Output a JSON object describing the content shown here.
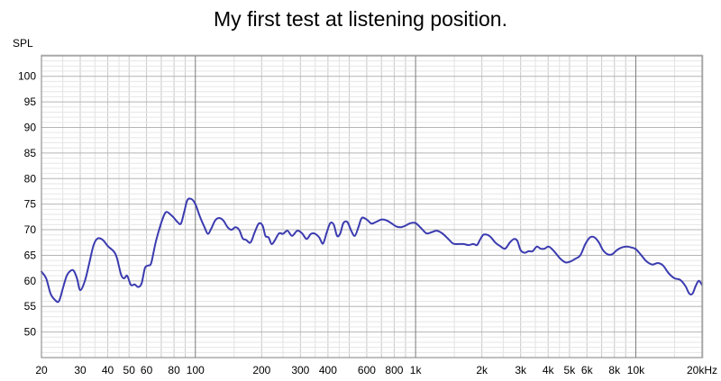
{
  "chart_data": {
    "type": "line",
    "title": "My first test at listening position.",
    "ylabel": "SPL",
    "xlabel": "",
    "x_scale": "log",
    "xlim": [
      20,
      20000
    ],
    "ylim": [
      45,
      104
    ],
    "grid": true,
    "y_ticks": [
      50,
      55,
      60,
      65,
      70,
      75,
      80,
      85,
      90,
      95,
      100
    ],
    "x_ticks": [
      {
        "value": 20,
        "label": "20"
      },
      {
        "value": 30,
        "label": "30"
      },
      {
        "value": 40,
        "label": "40"
      },
      {
        "value": 50,
        "label": "50"
      },
      {
        "value": 60,
        "label": "60"
      },
      {
        "value": 80,
        "label": "80"
      },
      {
        "value": 100,
        "label": "100"
      },
      {
        "value": 200,
        "label": "200"
      },
      {
        "value": 300,
        "label": "300"
      },
      {
        "value": 400,
        "label": "400"
      },
      {
        "value": 600,
        "label": "600"
      },
      {
        "value": 800,
        "label": "800"
      },
      {
        "value": 1000,
        "label": "1k"
      },
      {
        "value": 2000,
        "label": "2k"
      },
      {
        "value": 3000,
        "label": "3k"
      },
      {
        "value": 4000,
        "label": "4k"
      },
      {
        "value": 5000,
        "label": "5k"
      },
      {
        "value": 6000,
        "label": "6k"
      },
      {
        "value": 8000,
        "label": "8k"
      },
      {
        "value": 10000,
        "label": "10k"
      },
      {
        "value": 20000,
        "label": "20kHz"
      }
    ],
    "series": [
      {
        "color": "#3b3bb0",
        "points": [
          [
            20,
            61.8
          ],
          [
            21,
            60.5
          ],
          [
            22,
            57.5
          ],
          [
            23,
            56.3
          ],
          [
            24,
            56.0
          ],
          [
            25,
            58.5
          ],
          [
            26,
            60.9
          ],
          [
            27,
            61.9
          ],
          [
            28,
            62.0
          ],
          [
            29,
            60.5
          ],
          [
            30,
            58.2
          ],
          [
            31.5,
            60.0
          ],
          [
            33,
            63.5
          ],
          [
            34.5,
            67.0
          ],
          [
            36,
            68.3
          ],
          [
            38,
            68.0
          ],
          [
            40,
            66.8
          ],
          [
            42.5,
            65.8
          ],
          [
            44,
            64.5
          ],
          [
            46,
            61.2
          ],
          [
            47.5,
            60.5
          ],
          [
            49,
            61.0
          ],
          [
            51,
            59.2
          ],
          [
            53,
            59.3
          ],
          [
            55,
            58.8
          ],
          [
            57,
            59.5
          ],
          [
            59,
            62.5
          ],
          [
            61,
            63.0
          ],
          [
            63,
            63.5
          ],
          [
            66,
            67.5
          ],
          [
            69,
            70.5
          ],
          [
            72,
            72.8
          ],
          [
            74,
            73.5
          ],
          [
            77,
            73.0
          ],
          [
            80,
            72.3
          ],
          [
            83,
            71.5
          ],
          [
            86,
            71.2
          ],
          [
            89,
            73.5
          ],
          [
            92,
            75.8
          ],
          [
            96,
            76.0
          ],
          [
            100,
            75.0
          ],
          [
            105,
            72.5
          ],
          [
            110,
            70.5
          ],
          [
            114,
            69.2
          ],
          [
            118,
            70.2
          ],
          [
            123,
            71.8
          ],
          [
            128,
            72.3
          ],
          [
            134,
            71.8
          ],
          [
            140,
            70.5
          ],
          [
            146,
            70.0
          ],
          [
            152,
            70.5
          ],
          [
            158,
            70.0
          ],
          [
            164,
            68.3
          ],
          [
            170,
            68.0
          ],
          [
            178,
            67.5
          ],
          [
            186,
            69.5
          ],
          [
            194,
            71.2
          ],
          [
            202,
            70.8
          ],
          [
            208,
            68.8
          ],
          [
            215,
            68.5
          ],
          [
            222,
            67.2
          ],
          [
            230,
            68.0
          ],
          [
            240,
            69.3
          ],
          [
            250,
            69.2
          ],
          [
            262,
            69.8
          ],
          [
            275,
            68.8
          ],
          [
            290,
            69.8
          ],
          [
            305,
            69.3
          ],
          [
            320,
            68.2
          ],
          [
            335,
            69.2
          ],
          [
            350,
            69.2
          ],
          [
            365,
            68.5
          ],
          [
            380,
            67.3
          ],
          [
            395,
            69.5
          ],
          [
            410,
            71.3
          ],
          [
            425,
            71.0
          ],
          [
            440,
            68.8
          ],
          [
            455,
            69.3
          ],
          [
            470,
            71.3
          ],
          [
            490,
            71.5
          ],
          [
            510,
            69.8
          ],
          [
            530,
            68.8
          ],
          [
            550,
            70.5
          ],
          [
            570,
            72.3
          ],
          [
            600,
            72.0
          ],
          [
            630,
            71.2
          ],
          [
            660,
            71.5
          ],
          [
            700,
            72.0
          ],
          [
            740,
            71.8
          ],
          [
            780,
            71.2
          ],
          [
            820,
            70.6
          ],
          [
            860,
            70.5
          ],
          [
            900,
            70.8
          ],
          [
            950,
            71.3
          ],
          [
            1000,
            71.3
          ],
          [
            1060,
            70.3
          ],
          [
            1120,
            69.3
          ],
          [
            1180,
            69.5
          ],
          [
            1250,
            69.8
          ],
          [
            1320,
            69.3
          ],
          [
            1400,
            68.3
          ],
          [
            1480,
            67.3
          ],
          [
            1560,
            67.2
          ],
          [
            1650,
            67.2
          ],
          [
            1740,
            67.0
          ],
          [
            1830,
            67.2
          ],
          [
            1900,
            67.0
          ],
          [
            1960,
            68.0
          ],
          [
            2030,
            69.0
          ],
          [
            2120,
            69.0
          ],
          [
            2200,
            68.5
          ],
          [
            2300,
            67.5
          ],
          [
            2420,
            66.8
          ],
          [
            2550,
            66.3
          ],
          [
            2680,
            67.5
          ],
          [
            2800,
            68.2
          ],
          [
            2900,
            67.8
          ],
          [
            3000,
            66.0
          ],
          [
            3130,
            65.5
          ],
          [
            3260,
            65.8
          ],
          [
            3400,
            65.8
          ],
          [
            3550,
            66.7
          ],
          [
            3700,
            66.3
          ],
          [
            3850,
            66.3
          ],
          [
            4000,
            66.7
          ],
          [
            4150,
            66.3
          ],
          [
            4350,
            65.3
          ],
          [
            4550,
            64.3
          ],
          [
            4800,
            63.6
          ],
          [
            5050,
            63.8
          ],
          [
            5300,
            64.3
          ],
          [
            5600,
            65.0
          ],
          [
            5900,
            67.2
          ],
          [
            6200,
            68.5
          ],
          [
            6500,
            68.5
          ],
          [
            6800,
            67.5
          ],
          [
            7100,
            66.0
          ],
          [
            7450,
            65.2
          ],
          [
            7800,
            65.2
          ],
          [
            8200,
            66.0
          ],
          [
            8600,
            66.5
          ],
          [
            9100,
            66.7
          ],
          [
            9600,
            66.5
          ],
          [
            10000,
            66.2
          ],
          [
            10600,
            65.0
          ],
          [
            11200,
            63.8
          ],
          [
            11900,
            63.2
          ],
          [
            12600,
            63.5
          ],
          [
            13300,
            63.0
          ],
          [
            14100,
            61.5
          ],
          [
            15000,
            60.5
          ],
          [
            15900,
            60.2
          ],
          [
            16800,
            59.0
          ],
          [
            17500,
            57.5
          ],
          [
            18100,
            57.5
          ],
          [
            18700,
            59.0
          ],
          [
            19300,
            60.0
          ],
          [
            19800,
            59.5
          ],
          [
            20000,
            59.2
          ]
        ]
      }
    ]
  }
}
